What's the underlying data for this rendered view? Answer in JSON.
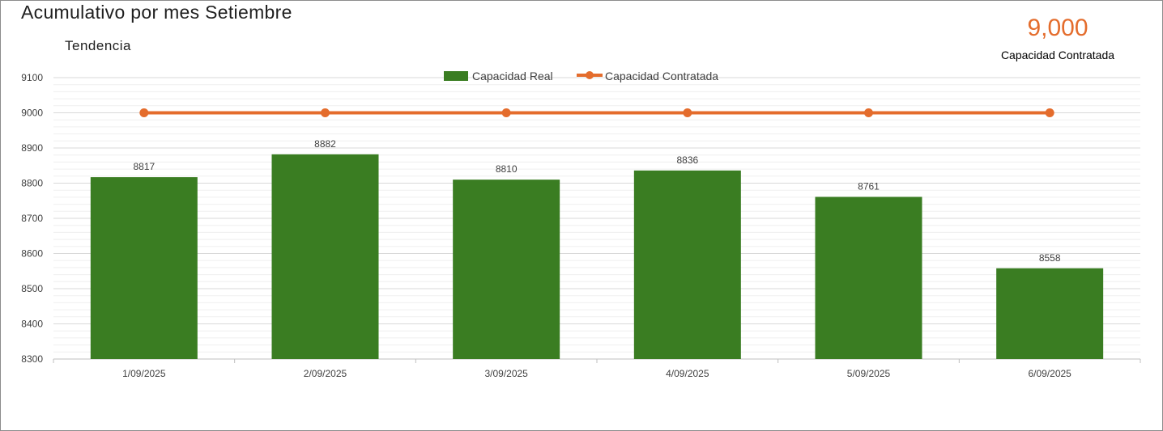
{
  "header": {
    "title": "Acumulativo por mes Setiembre",
    "subtitle": "Tendencia"
  },
  "kpi": {
    "value": "9,000",
    "label": "Capacidad Contratada"
  },
  "chart_data": {
    "type": "bar",
    "categories": [
      "1/09/2025",
      "2/09/2025",
      "3/09/2025",
      "4/09/2025",
      "5/09/2025",
      "6/09/2025"
    ],
    "series": [
      {
        "name": "Capacidad Real",
        "type": "bar",
        "color": "#3a7d22",
        "values": [
          8817,
          8882,
          8810,
          8836,
          8761,
          8558
        ]
      },
      {
        "name": "Capacidad Contratada",
        "type": "line",
        "color": "#e46c2c",
        "values": [
          9000,
          9000,
          9000,
          9000,
          9000,
          9000
        ]
      }
    ],
    "ylim": [
      8300,
      9100
    ],
    "yticks": [
      8300,
      8400,
      8500,
      8600,
      8700,
      8800,
      8900,
      9000,
      9100
    ],
    "data_labels": true,
    "grid": true,
    "legend_position": "top"
  }
}
